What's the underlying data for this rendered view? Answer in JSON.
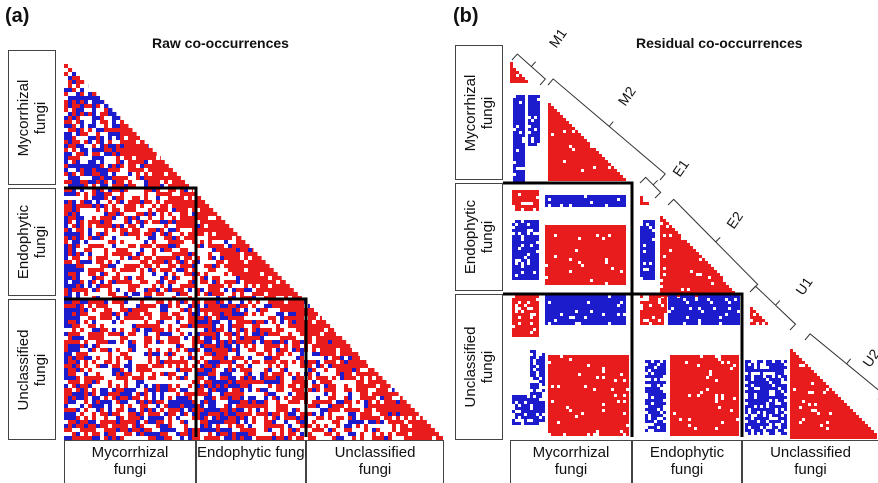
{
  "panels": [
    {
      "letter": "(a)",
      "title": "Raw co-occurrences",
      "row_labels": [
        {
          "line1": "Mycorrhizal",
          "line2": "fungi"
        },
        {
          "line1": "Endophytic",
          "line2": "fungi"
        },
        {
          "line1": "Unclassified",
          "line2": "fungi"
        }
      ],
      "col_labels": [
        {
          "line1": "Mycorrhizal",
          "line2": "fungi"
        },
        {
          "line1": "Endophytic fungi",
          "line2": ""
        },
        {
          "line1": "Unclassified",
          "line2": "fungi"
        }
      ]
    },
    {
      "letter": "(b)",
      "title": "Residual co-occurrences",
      "row_labels": [
        {
          "line1": "Mycorrhizal",
          "line2": "fungi"
        },
        {
          "line1": "Endophytic",
          "line2": "fungi"
        },
        {
          "line1": "Unclassified",
          "line2": "fungi"
        }
      ],
      "col_labels": [
        {
          "line1": "Mycorrhizal",
          "line2": "fungi"
        },
        {
          "line1": "Endophytic",
          "line2": "fungi"
        },
        {
          "line1": "Unclassified",
          "line2": "fungi"
        }
      ],
      "cluster_labels": [
        "M1",
        "M2",
        "E1",
        "E2",
        "U1",
        "U2"
      ]
    }
  ],
  "colors": {
    "positive": "#e81c1c",
    "negative": "#1c1ccc",
    "divider": "#000000"
  }
}
